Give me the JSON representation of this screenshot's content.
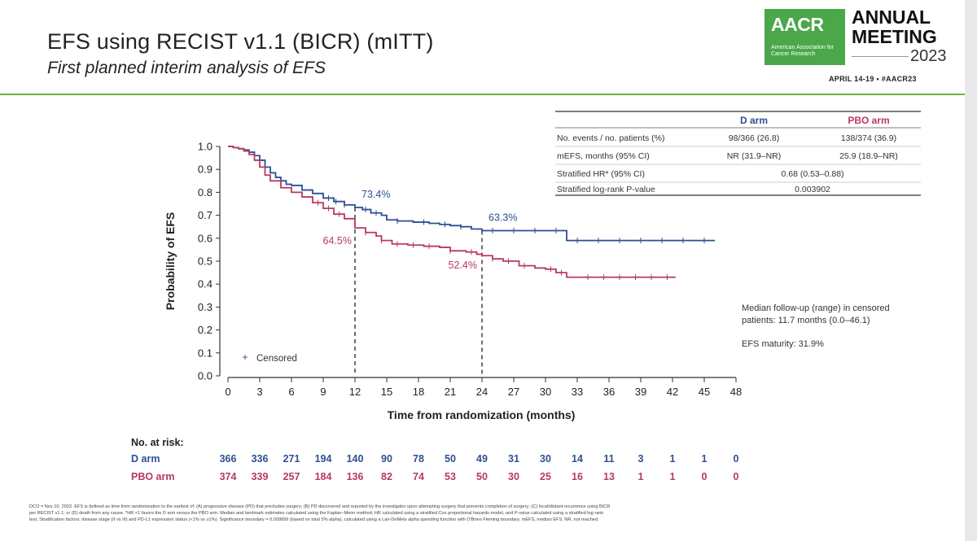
{
  "header": {
    "title": "EFS using RECIST v1.1 (BICR) (mITT)",
    "subtitle": "First planned interim analysis of EFS"
  },
  "logo": {
    "brand": "AACR",
    "org_name": "American Association for Cancer Research",
    "annual": "ANNUAL",
    "meeting": "MEETING",
    "year": "2023",
    "dates": "APRIL 14-19 • #AACR23",
    "brand_color": "#4aa74a"
  },
  "colors": {
    "d_arm": "#2e4f93",
    "pbo_arm": "#b83a5e",
    "accent_rule": "#6cb33f"
  },
  "stats_table": {
    "col_headers": [
      "D arm",
      "PBO arm"
    ],
    "rows": [
      {
        "label": "No. events / no. patients (%)",
        "d": "98/366 (26.8)",
        "pbo": "138/374 (36.9)"
      },
      {
        "label": "mEFS, months (95% CI)",
        "d": "NR (31.9–NR)",
        "pbo": "25.9 (18.9–NR)"
      },
      {
        "label": "Stratified HR* (95% CI)",
        "merged": "0.68 (0.53–0.88)"
      },
      {
        "label": "Stratified log-rank P-value",
        "merged": "0.003902"
      }
    ]
  },
  "notes": {
    "followup": "Median follow-up (range) in censored patients: 11.7 months (0.0–46.1)",
    "maturity": "EFS maturity: 31.9%"
  },
  "risk_table": {
    "title": "No. at risk:",
    "rows": [
      {
        "label": "D arm",
        "values": [
          "366",
          "336",
          "271",
          "194",
          "140",
          "90",
          "78",
          "50",
          "49",
          "31",
          "30",
          "14",
          "11",
          "3",
          "1",
          "1",
          "0"
        ]
      },
      {
        "label": "PBO arm",
        "values": [
          "374",
          "339",
          "257",
          "184",
          "136",
          "82",
          "74",
          "53",
          "50",
          "30",
          "25",
          "16",
          "13",
          "1",
          "1",
          "0",
          "0"
        ]
      }
    ]
  },
  "chart_data": {
    "type": "line",
    "subtype": "kaplan-meier",
    "title": "",
    "xlabel": "Time from randomization (months)",
    "ylabel": "Probability of EFS",
    "xlim": [
      0,
      48
    ],
    "ylim": [
      0,
      1.0
    ],
    "x_ticks": [
      0,
      3,
      6,
      9,
      12,
      15,
      18,
      21,
      24,
      27,
      30,
      33,
      36,
      39,
      42,
      45,
      48
    ],
    "y_ticks": [
      0.0,
      0.1,
      0.2,
      0.3,
      0.4,
      0.5,
      0.6,
      0.7,
      0.8,
      0.9,
      1.0
    ],
    "y_tick_labels": [
      "0.0",
      "0.1",
      "0.2",
      "0.3",
      "0.4",
      "0.5",
      "0.6",
      "0.7",
      "0.8",
      "0.9",
      "1.0"
    ],
    "legend": {
      "label": "Censored",
      "position": "bottom-left"
    },
    "reference_lines_x": [
      12,
      24
    ],
    "series": [
      {
        "name": "D arm",
        "color": "#2e4f93",
        "x": [
          0,
          0.5,
          1,
          1.5,
          2,
          2.5,
          3,
          3.5,
          4,
          4.5,
          5,
          5.5,
          6,
          7,
          8,
          9,
          10,
          11,
          12,
          12.7,
          13.5,
          14.5,
          15,
          16,
          17.5,
          19,
          20,
          21,
          22,
          23,
          24,
          26,
          28,
          30,
          31,
          32,
          33,
          36,
          39,
          42,
          46
        ],
        "y": [
          1.0,
          0.995,
          0.99,
          0.985,
          0.975,
          0.96,
          0.94,
          0.91,
          0.885,
          0.865,
          0.85,
          0.835,
          0.83,
          0.81,
          0.795,
          0.775,
          0.76,
          0.745,
          0.734,
          0.725,
          0.71,
          0.7,
          0.68,
          0.675,
          0.67,
          0.665,
          0.66,
          0.655,
          0.65,
          0.64,
          0.633,
          0.633,
          0.633,
          0.633,
          0.633,
          0.59,
          0.59,
          0.59,
          0.59,
          0.59,
          0.59
        ],
        "censored_x": [
          9.5,
          10.2,
          11,
          13,
          14,
          16,
          18.5,
          20.5,
          22,
          25,
          27,
          29,
          31,
          33,
          35,
          37,
          39,
          41,
          43,
          45
        ],
        "landmarks": [
          {
            "x": 12,
            "y": 0.734,
            "label": "73.4%"
          },
          {
            "x": 24,
            "y": 0.633,
            "label": "63.3%"
          }
        ]
      },
      {
        "name": "PBO arm",
        "color": "#b83a5e",
        "x": [
          0,
          0.5,
          1,
          1.5,
          2,
          2.5,
          3,
          3.5,
          4,
          5,
          6,
          7,
          8,
          9,
          10,
          11,
          12,
          13,
          14,
          14.5,
          15.5,
          17,
          18.5,
          20,
          21,
          22.5,
          23.5,
          24,
          25,
          26,
          27.5,
          29,
          30,
          31,
          32,
          33,
          36,
          38,
          40,
          42.3
        ],
        "y": [
          1.0,
          0.995,
          0.99,
          0.98,
          0.965,
          0.94,
          0.91,
          0.875,
          0.85,
          0.82,
          0.8,
          0.78,
          0.755,
          0.73,
          0.705,
          0.685,
          0.645,
          0.625,
          0.61,
          0.59,
          0.575,
          0.57,
          0.565,
          0.56,
          0.545,
          0.54,
          0.53,
          0.524,
          0.51,
          0.5,
          0.48,
          0.47,
          0.465,
          0.45,
          0.43,
          0.43,
          0.43,
          0.43,
          0.43,
          0.43
        ],
        "censored_x": [
          8.5,
          9.5,
          10.5,
          13,
          14.5,
          16,
          17.5,
          19,
          21,
          23,
          25,
          26.5,
          28,
          30.5,
          31.5,
          34,
          35.5,
          37,
          38.5,
          40,
          41.5
        ],
        "landmarks": [
          {
            "x": 12,
            "y": 0.645,
            "label": "64.5%"
          },
          {
            "x": 24,
            "y": 0.524,
            "label": "52.4%"
          }
        ]
      }
    ]
  },
  "footnote": {
    "lines": [
      "DCO = Nov 10, 2022. EFS is defined as time from randomization to the earliest of: (A) progressive disease (PD) that precludes surgery; (B) PD discovered and reported by the investigator upon attempting surgery that prevents completion of surgery; (C) local/distant recurrence using BICR",
      "per RECIST v1.1; or (D) death from any cause. *HR <1 favors the D arm versus the PBO arm. Median and landmark estimates calculated using the Kaplan–Meier method; HR calculated using a stratified Cox proportional hazards model, and P-value calculated using a stratified log rank",
      "test. Stratification factors: disease stage (II vs III) and PD-L1 expression status (<1% vs ≥1%). Significance boundary = 0.009899 (based on total 5% alpha), calculated using a Lan-DeMets alpha spending function with O'Brien Fleming boundary. mEFS, median EFS; NR, not reached."
    ]
  }
}
